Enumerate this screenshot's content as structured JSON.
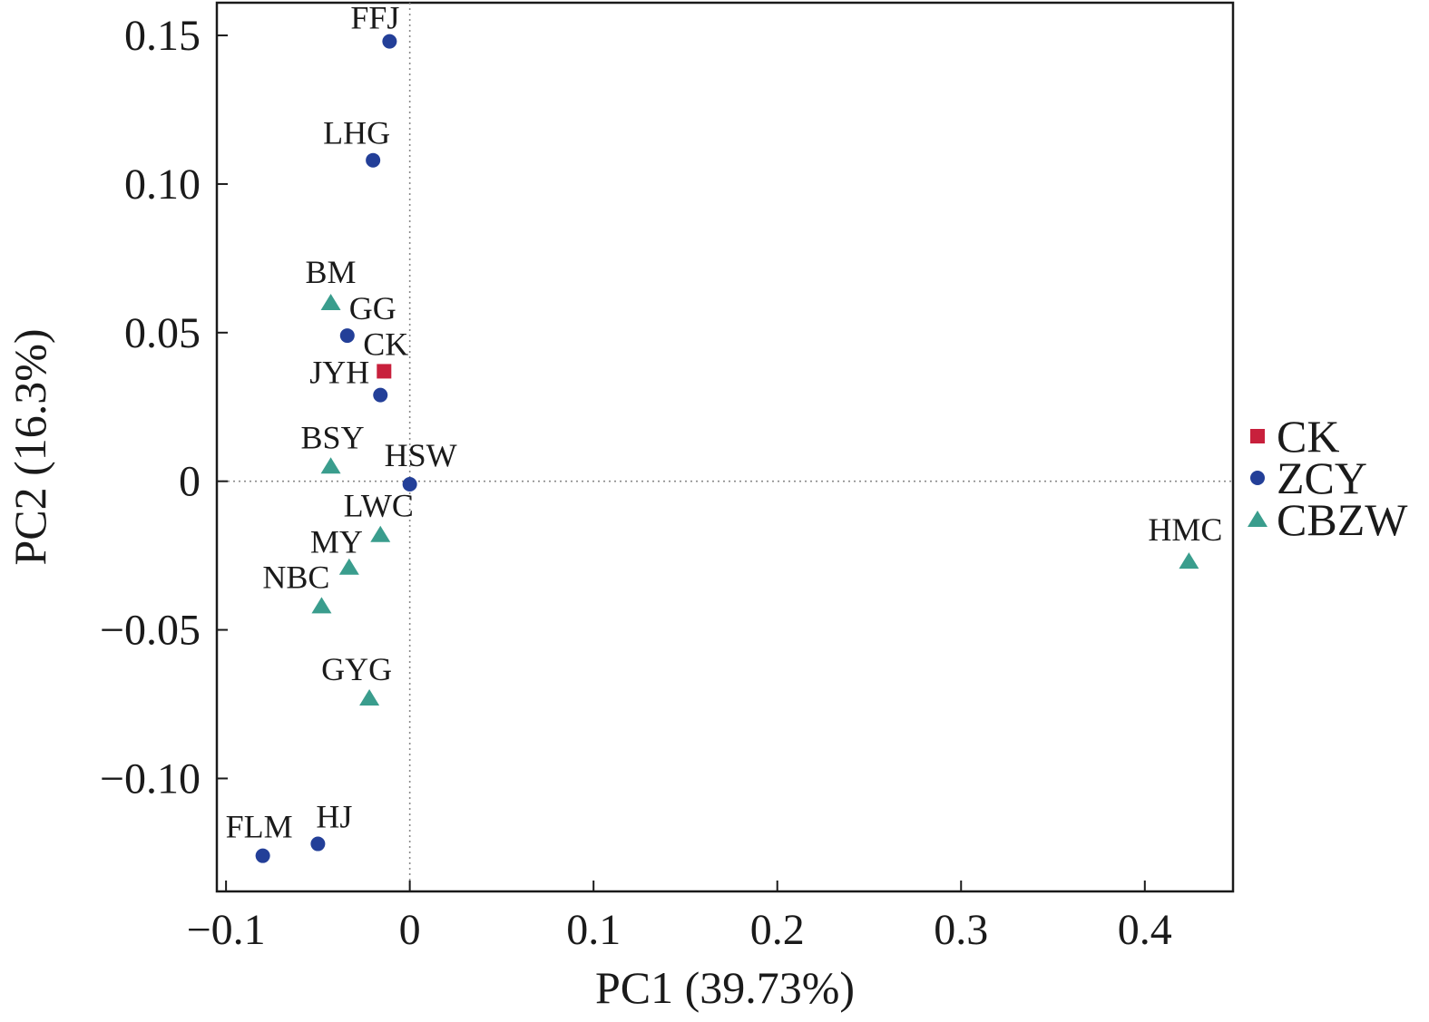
{
  "chart_data": {
    "type": "scatter",
    "xlabel": "PC1 (39.73%)",
    "ylabel": "PC2 (16.3%)",
    "xlim": [
      -0.105,
      0.448
    ],
    "ylim": [
      -0.138,
      0.161
    ],
    "x_ticks": [
      -0.1,
      0,
      0.1,
      0.2,
      0.3,
      0.4
    ],
    "x_tick_labels": [
      "−0.1",
      "0",
      "0.1",
      "0.2",
      "0.3",
      "0.4"
    ],
    "y_ticks": [
      0.15,
      0.1,
      0.05,
      0,
      -0.05,
      -0.1
    ],
    "y_tick_labels": [
      "0.15",
      "0.10",
      "0.05",
      "0",
      "−0.05",
      "−0.10"
    ],
    "reference_lines": {
      "x": 0,
      "y": 0
    },
    "legend_position": "right",
    "groups": [
      {
        "name": "CK",
        "marker": "square",
        "color": "#c8203c"
      },
      {
        "name": "ZCY",
        "marker": "circle",
        "color": "#233f98"
      },
      {
        "name": "CBZW",
        "marker": "triangle",
        "color": "#3a9d8d"
      }
    ],
    "points": [
      {
        "label": "FFJ",
        "group": "ZCY",
        "x": -0.011,
        "y": 0.148
      },
      {
        "label": "LHG",
        "group": "ZCY",
        "x": -0.02,
        "y": 0.108
      },
      {
        "label": "BM",
        "group": "CBZW",
        "x": -0.043,
        "y": 0.06
      },
      {
        "label": "GG",
        "group": "ZCY",
        "x": -0.034,
        "y": 0.049
      },
      {
        "label": "CK",
        "group": "CK",
        "x": -0.014,
        "y": 0.037
      },
      {
        "label": "JYH",
        "group": "ZCY",
        "x": -0.016,
        "y": 0.029
      },
      {
        "label": "BSY",
        "group": "CBZW",
        "x": -0.043,
        "y": 0.005
      },
      {
        "label": "HSW",
        "group": "ZCY",
        "x": 0.0,
        "y": -0.001
      },
      {
        "label": "LWC",
        "group": "CBZW",
        "x": -0.016,
        "y": -0.018
      },
      {
        "label": "MY",
        "group": "CBZW",
        "x": -0.033,
        "y": -0.029
      },
      {
        "label": "NBC",
        "group": "CBZW",
        "x": -0.048,
        "y": -0.042
      },
      {
        "label": "GYG",
        "group": "CBZW",
        "x": -0.022,
        "y": -0.073
      },
      {
        "label": "HJ",
        "group": "ZCY",
        "x": -0.05,
        "y": -0.122
      },
      {
        "label": "FLM",
        "group": "ZCY",
        "x": -0.08,
        "y": -0.126
      },
      {
        "label": "HMC",
        "group": "CBZW",
        "x": 0.424,
        "y": -0.027
      }
    ]
  }
}
